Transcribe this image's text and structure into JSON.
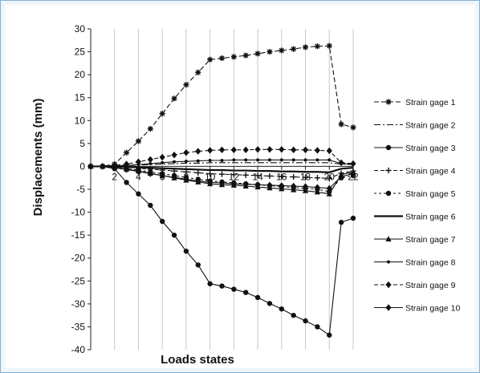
{
  "chart_data": {
    "type": "line",
    "title": "",
    "xlabel": "Loads states",
    "ylabel": "Displacements (mm)",
    "xlim": [
      0,
      22
    ],
    "ylim": [
      -40,
      30
    ],
    "x_ticks": [
      2,
      4,
      6,
      8,
      10,
      12,
      14,
      16,
      18,
      20,
      22
    ],
    "y_ticks": [
      30,
      25,
      20,
      15,
      10,
      5,
      0,
      -5,
      -10,
      -15,
      -20,
      -25,
      -30,
      -35,
      -40
    ],
    "grid": "vertical lines only",
    "legend_position": "right",
    "x": [
      0,
      1,
      2,
      3,
      4,
      5,
      6,
      7,
      8,
      9,
      10,
      11,
      12,
      13,
      14,
      15,
      16,
      17,
      18,
      19,
      20,
      21,
      22
    ],
    "series": [
      {
        "name": "Strain gage 1",
        "marker": "star",
        "dash": "6,3",
        "values": [
          0,
          0,
          0.5,
          3,
          5.5,
          8.2,
          11.5,
          14.8,
          17.8,
          20.5,
          23.3,
          23.6,
          23.9,
          24.2,
          24.6,
          25,
          25.3,
          25.6,
          26,
          26.2,
          26.3,
          9.2,
          8.5
        ]
      },
      {
        "name": "Strain gage 2",
        "marker": "none",
        "dash": "8,3,2,3",
        "values": [
          0,
          0,
          0.1,
          0.2,
          0.3,
          0.4,
          0.5,
          0.6,
          0.7,
          0.7,
          0.8,
          0.8,
          0.8,
          0.8,
          0.8,
          0.8,
          0.8,
          0.8,
          0.8,
          0.8,
          0.8,
          0.5,
          0.4
        ]
      },
      {
        "name": "Strain gage 3",
        "marker": "dot",
        "dash": "",
        "values": [
          0,
          0,
          -0.5,
          -3.5,
          -6,
          -8.5,
          -12,
          -15,
          -18.5,
          -21.5,
          -25.6,
          -26.1,
          -26.8,
          -27.5,
          -28.6,
          -29.9,
          -31.1,
          -32.5,
          -33.7,
          -35,
          -36.8,
          -12.2,
          -11.3
        ]
      },
      {
        "name": "Strain gage 4",
        "marker": "plus",
        "dash": "5,3",
        "values": [
          0,
          0,
          -0.1,
          -0.2,
          -0.4,
          -0.6,
          -0.8,
          -1,
          -1.2,
          -1.4,
          -1.6,
          -1.7,
          -1.8,
          -1.9,
          -2,
          -2.1,
          -2.2,
          -2.3,
          -2.4,
          -2.5,
          -2.6,
          -1.5,
          -1
        ]
      },
      {
        "name": "Strain gage 5",
        "marker": "dot",
        "dash": "3,3",
        "values": [
          0,
          0,
          -0.2,
          -0.5,
          -0.8,
          -1.2,
          -1.6,
          -2,
          -2.4,
          -2.8,
          -3.2,
          -3.4,
          -3.6,
          -3.8,
          -4,
          -4.2,
          -4.4,
          -4.6,
          -4.8,
          -5,
          -5.5,
          -2.5,
          -2
        ]
      },
      {
        "name": "Strain gage 6",
        "marker": "none",
        "dash": "",
        "width": 2.2,
        "values": [
          0,
          0,
          0,
          -0.1,
          -0.2,
          -0.3,
          -0.4,
          -0.5,
          -0.6,
          -0.7,
          -0.8,
          -0.8,
          -0.9,
          -0.9,
          -1,
          -1,
          -1.1,
          -1.1,
          -1.2,
          -1.2,
          -1.3,
          -0.5,
          -0.3
        ]
      },
      {
        "name": "Strain gage 7",
        "marker": "triangle",
        "dash": "",
        "values": [
          0,
          0,
          -0.2,
          -0.6,
          -1,
          -1.5,
          -2,
          -2.5,
          -3,
          -3.4,
          -3.8,
          -4,
          -4.1,
          -4.3,
          -4.5,
          -4.7,
          -4.9,
          -5.1,
          -5.3,
          -5.6,
          -6,
          -1.8,
          -1.2
        ]
      },
      {
        "name": "Strain gage 8",
        "marker": "small-dot",
        "dash": "",
        "values": [
          0,
          0,
          0.1,
          0.2,
          0.4,
          0.6,
          0.8,
          1,
          1.1,
          1.2,
          1.3,
          1.3,
          1.4,
          1.4,
          1.4,
          1.4,
          1.4,
          1.4,
          1.4,
          1.4,
          1.4,
          0.6,
          0.5
        ]
      },
      {
        "name": "Strain gage 9",
        "marker": "diamond",
        "dash": "5,3",
        "values": [
          0,
          0,
          0.2,
          0.5,
          1,
          1.5,
          2,
          2.5,
          3,
          3.3,
          3.5,
          3.6,
          3.6,
          3.6,
          3.7,
          3.7,
          3.7,
          3.6,
          3.6,
          3.5,
          3.4,
          0.8,
          0.6
        ]
      },
      {
        "name": "Strain gage 10",
        "marker": "diamond",
        "dash": "",
        "values": [
          0,
          0,
          -0.3,
          -0.7,
          -1.1,
          -1.6,
          -2,
          -2.4,
          -2.8,
          -3.2,
          -3.5,
          -3.6,
          -3.8,
          -3.9,
          -4,
          -4.1,
          -4.2,
          -4.3,
          -4.4,
          -4.6,
          -4.8,
          -2.2,
          -1.6
        ]
      }
    ]
  }
}
